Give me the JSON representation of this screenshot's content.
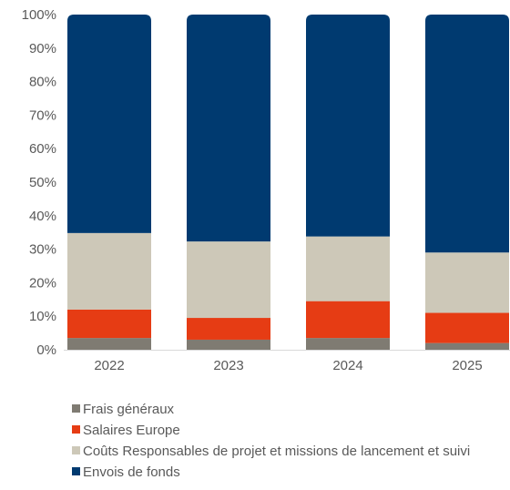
{
  "chart_data": {
    "type": "bar",
    "stacked": true,
    "percent": true,
    "categories": [
      "2022",
      "2023",
      "2024",
      "2025"
    ],
    "series": [
      {
        "name": "Frais généraux",
        "color": "#7f7b72",
        "values": [
          3.5,
          3.0,
          3.5,
          2.0
        ]
      },
      {
        "name": "Salaires Europe",
        "color": "#e63c14",
        "values": [
          8.5,
          6.5,
          11.0,
          9.0
        ]
      },
      {
        "name": "Coûts Responsables de projet et missions de lancement et suivi",
        "color": "#cdc8b8",
        "values": [
          22.8,
          22.8,
          19.3,
          18.0
        ]
      },
      {
        "name": "Envois de fonds",
        "color": "#003a70",
        "values": [
          65.2,
          67.7,
          66.2,
          71.0
        ]
      }
    ],
    "ylim": [
      0,
      100
    ],
    "yticks": [
      "0%",
      "10%",
      "20%",
      "30%",
      "40%",
      "50%",
      "60%",
      "70%",
      "80%",
      "90%",
      "100%"
    ],
    "grid": false,
    "legend_position": "bottom"
  }
}
